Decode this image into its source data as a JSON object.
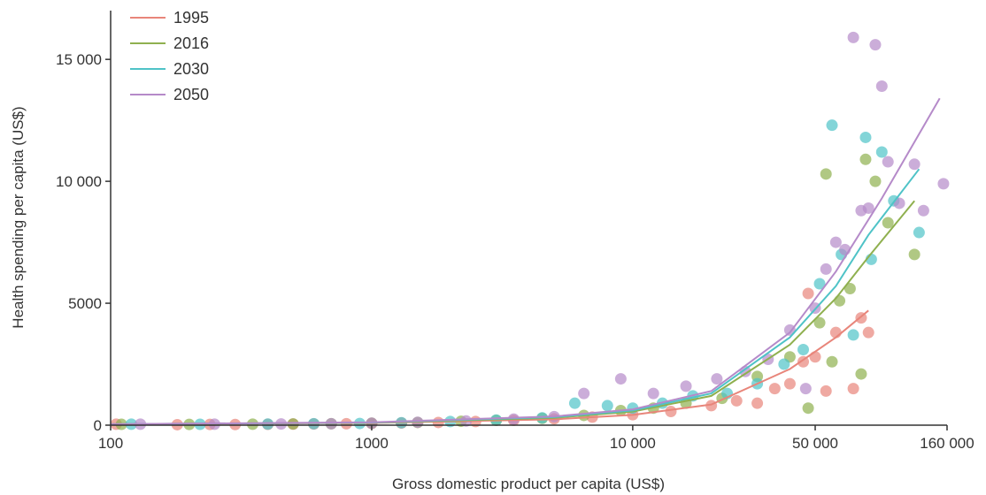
{
  "chart_data": {
    "type": "scatter",
    "title": "",
    "xlabel": "Gross domestic product per capita (US$)",
    "ylabel": "Health spending per capita (US$)",
    "xscale": "log",
    "xlim": [
      100,
      160000
    ],
    "ylim": [
      0,
      17000
    ],
    "xticks": [
      100,
      1000,
      10000,
      50000,
      160000
    ],
    "xtick_labels": [
      "100",
      "1000",
      "10 000",
      "50 000",
      "160 000"
    ],
    "yticks": [
      0,
      5000,
      10000,
      15000
    ],
    "ytick_labels": [
      "0",
      "5000",
      "10 000",
      "15 000"
    ],
    "grid": false,
    "legend": "top-left",
    "series": [
      {
        "name": "1995",
        "color": "#e8857a",
        "points": [
          [
            105,
            40
          ],
          [
            180,
            20
          ],
          [
            240,
            30
          ],
          [
            300,
            25
          ],
          [
            400,
            35
          ],
          [
            500,
            45
          ],
          [
            600,
            50
          ],
          [
            800,
            60
          ],
          [
            1000,
            70
          ],
          [
            1300,
            90
          ],
          [
            1800,
            110
          ],
          [
            2500,
            150
          ],
          [
            3500,
            200
          ],
          [
            5000,
            260
          ],
          [
            7000,
            330
          ],
          [
            10000,
            430
          ],
          [
            14000,
            560
          ],
          [
            20000,
            800
          ],
          [
            25000,
            1000
          ],
          [
            30000,
            900
          ],
          [
            35000,
            1500
          ],
          [
            40000,
            1700
          ],
          [
            45000,
            2600
          ],
          [
            47000,
            5400
          ],
          [
            50000,
            2800
          ],
          [
            55000,
            1400
          ],
          [
            60000,
            3800
          ],
          [
            70000,
            1500
          ],
          [
            75000,
            4400
          ],
          [
            80000,
            3800
          ]
        ],
        "line": [
          [
            100,
            40
          ],
          [
            1000,
            90
          ],
          [
            5000,
            240
          ],
          [
            10000,
            420
          ],
          [
            20000,
            850
          ],
          [
            40000,
            2300
          ],
          [
            60000,
            3600
          ],
          [
            80000,
            4700
          ]
        ]
      },
      {
        "name": "2016",
        "color": "#8fb04f",
        "points": [
          [
            110,
            35
          ],
          [
            200,
            30
          ],
          [
            350,
            40
          ],
          [
            500,
            50
          ],
          [
            700,
            60
          ],
          [
            1000,
            80
          ],
          [
            1500,
            110
          ],
          [
            2200,
            160
          ],
          [
            3000,
            200
          ],
          [
            4500,
            280
          ],
          [
            6500,
            400
          ],
          [
            9000,
            600
          ],
          [
            12000,
            700
          ],
          [
            16000,
            900
          ],
          [
            22000,
            1100
          ],
          [
            30000,
            2000
          ],
          [
            40000,
            2800
          ],
          [
            47000,
            700
          ],
          [
            52000,
            4200
          ],
          [
            55000,
            10300
          ],
          [
            58000,
            2600
          ],
          [
            62000,
            5100
          ],
          [
            68000,
            5600
          ],
          [
            75000,
            2100
          ],
          [
            78000,
            10900
          ],
          [
            85000,
            10000
          ],
          [
            95000,
            8300
          ],
          [
            120000,
            7000
          ]
        ],
        "line": [
          [
            100,
            40
          ],
          [
            1000,
            100
          ],
          [
            5000,
            300
          ],
          [
            10000,
            560
          ],
          [
            20000,
            1200
          ],
          [
            40000,
            3300
          ],
          [
            60000,
            5200
          ],
          [
            80000,
            6900
          ],
          [
            120000,
            9200
          ]
        ]
      },
      {
        "name": "2030",
        "color": "#4fc3c7",
        "points": [
          [
            120,
            40
          ],
          [
            220,
            35
          ],
          [
            400,
            45
          ],
          [
            600,
            60
          ],
          [
            900,
            70
          ],
          [
            1300,
            100
          ],
          [
            2000,
            150
          ],
          [
            3000,
            210
          ],
          [
            4500,
            300
          ],
          [
            6000,
            900
          ],
          [
            8000,
            800
          ],
          [
            10000,
            700
          ],
          [
            13000,
            900
          ],
          [
            17000,
            1200
          ],
          [
            23000,
            1300
          ],
          [
            30000,
            1700
          ],
          [
            38000,
            2500
          ],
          [
            45000,
            3100
          ],
          [
            52000,
            5800
          ],
          [
            58000,
            12300
          ],
          [
            63000,
            7000
          ],
          [
            70000,
            3700
          ],
          [
            78000,
            11800
          ],
          [
            82000,
            6800
          ],
          [
            90000,
            11200
          ],
          [
            100000,
            9200
          ],
          [
            125000,
            7900
          ]
        ],
        "line": [
          [
            100,
            40
          ],
          [
            1000,
            110
          ],
          [
            5000,
            330
          ],
          [
            10000,
            600
          ],
          [
            20000,
            1300
          ],
          [
            40000,
            3600
          ],
          [
            60000,
            5700
          ],
          [
            80000,
            7800
          ],
          [
            125000,
            10500
          ]
        ]
      },
      {
        "name": "2050",
        "color": "#b58ac9",
        "points": [
          [
            130,
            40
          ],
          [
            250,
            40
          ],
          [
            450,
            50
          ],
          [
            700,
            60
          ],
          [
            1000,
            80
          ],
          [
            1500,
            120
          ],
          [
            2300,
            170
          ],
          [
            3500,
            250
          ],
          [
            5000,
            350
          ],
          [
            6500,
            1300
          ],
          [
            9000,
            1900
          ],
          [
            12000,
            1300
          ],
          [
            16000,
            1600
          ],
          [
            21000,
            1900
          ],
          [
            27000,
            2200
          ],
          [
            33000,
            2700
          ],
          [
            40000,
            3900
          ],
          [
            46000,
            1500
          ],
          [
            50000,
            4800
          ],
          [
            55000,
            6400
          ],
          [
            60000,
            7500
          ],
          [
            65000,
            7200
          ],
          [
            70000,
            15900
          ],
          [
            75000,
            8800
          ],
          [
            80000,
            8900
          ],
          [
            85000,
            15600
          ],
          [
            90000,
            13900
          ],
          [
            95000,
            10800
          ],
          [
            105000,
            9100
          ],
          [
            120000,
            10700
          ],
          [
            130000,
            8800
          ],
          [
            155000,
            9900
          ]
        ],
        "line": [
          [
            100,
            40
          ],
          [
            1000,
            120
          ],
          [
            5000,
            360
          ],
          [
            10000,
            650
          ],
          [
            20000,
            1400
          ],
          [
            40000,
            3800
          ],
          [
            60000,
            6300
          ],
          [
            90000,
            9300
          ],
          [
            150000,
            13400
          ]
        ]
      }
    ]
  }
}
